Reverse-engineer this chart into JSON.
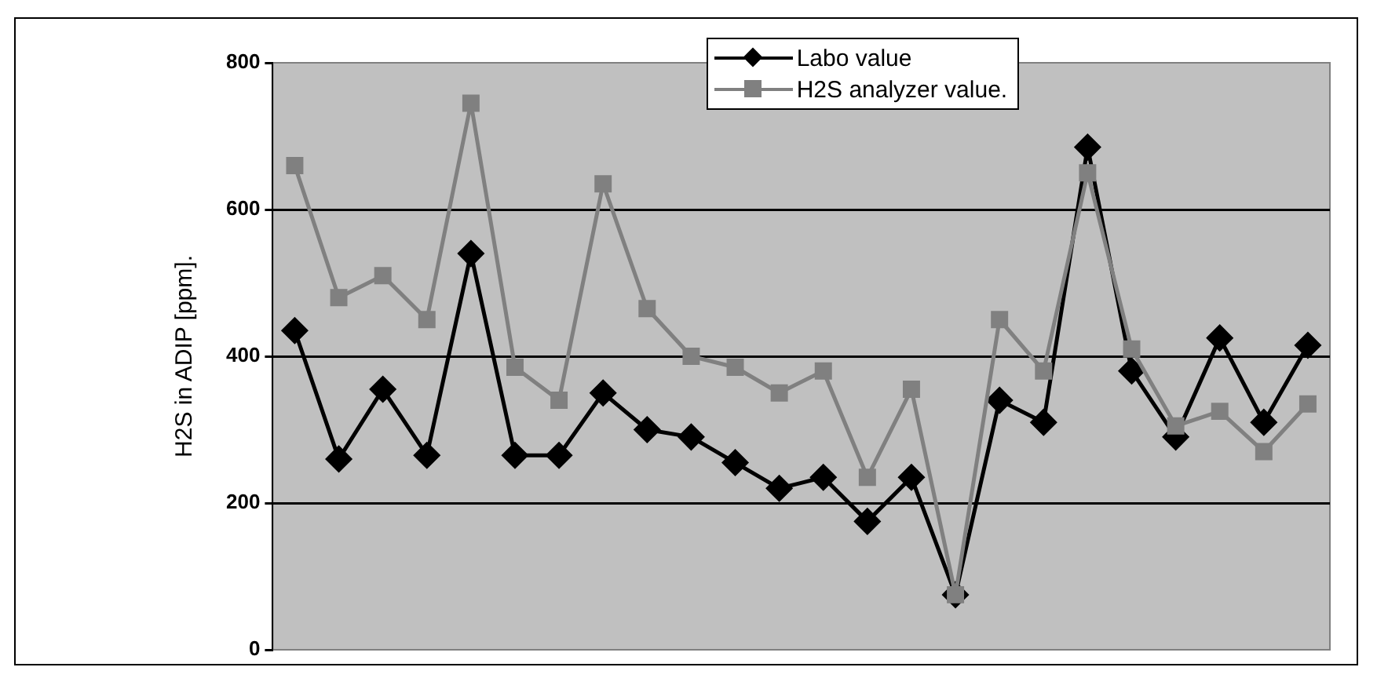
{
  "chart_data": {
    "type": "line",
    "ylabel": "H2S in ADIP [ppm].",
    "categories": [
      null,
      null,
      null,
      null,
      null,
      null,
      null,
      null,
      null,
      null,
      null,
      null,
      null,
      null,
      null,
      null,
      null,
      null,
      null,
      null,
      null,
      null,
      null,
      null
    ],
    "series": [
      {
        "name": "Labo value",
        "color": "#000000",
        "marker": "diamond",
        "values": [
          435,
          260,
          355,
          265,
          540,
          265,
          265,
          350,
          300,
          290,
          255,
          220,
          235,
          175,
          235,
          75,
          340,
          310,
          685,
          380,
          290,
          425,
          310,
          415
        ]
      },
      {
        "name": "H2S analyzer value.",
        "color": "#808080",
        "marker": "square",
        "values": [
          660,
          480,
          510,
          450,
          745,
          385,
          340,
          635,
          465,
          400,
          385,
          350,
          380,
          235,
          355,
          75,
          450,
          380,
          650,
          410,
          305,
          325,
          270,
          335
        ]
      }
    ],
    "ylim": [
      0,
      800
    ],
    "yticks": [
      0,
      200,
      400,
      600,
      800
    ],
    "grid": "y",
    "legend": "top",
    "tick_labels": "y"
  }
}
